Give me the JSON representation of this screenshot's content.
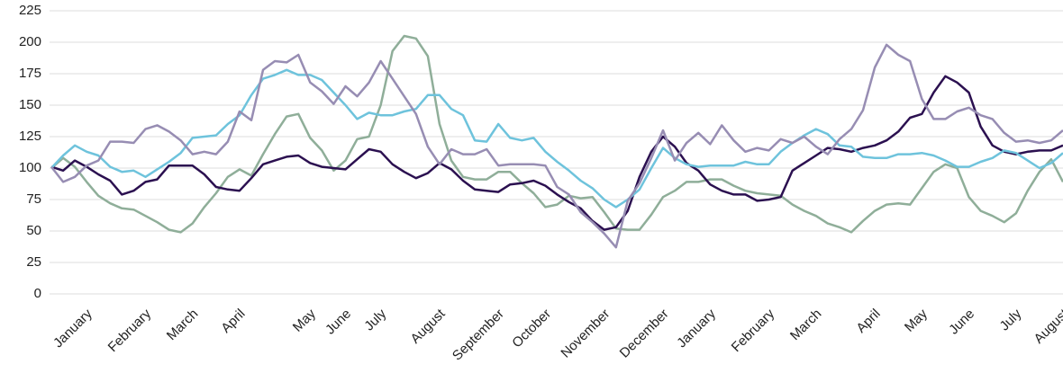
{
  "chart_data": {
    "type": "line",
    "categories": [
      null,
      null,
      null,
      "January",
      null,
      null,
      null,
      null,
      "February",
      null,
      null,
      null,
      "March",
      null,
      null,
      null,
      "April",
      null,
      null,
      null,
      null,
      null,
      "May",
      null,
      null,
      "June",
      null,
      null,
      "July",
      null,
      null,
      null,
      null,
      "August",
      null,
      null,
      null,
      null,
      "September",
      null,
      null,
      null,
      "October",
      null,
      null,
      null,
      null,
      "November",
      null,
      null,
      null,
      null,
      "December",
      null,
      null,
      null,
      "January",
      null,
      null,
      null,
      null,
      "February",
      null,
      null,
      null,
      "March",
      null,
      null,
      null,
      null,
      "April",
      null,
      null,
      null,
      "May",
      null,
      null,
      null,
      "June",
      null,
      null,
      null,
      "July",
      null,
      null,
      null,
      "August"
    ],
    "series": [
      {
        "color": "#2b1050",
        "values": [
          101,
          98,
          106,
          101,
          95,
          90,
          79,
          82,
          89,
          91,
          102,
          102,
          102,
          95,
          85,
          83,
          82,
          92,
          103,
          106,
          109,
          110,
          104,
          101,
          100,
          99,
          107,
          115,
          113,
          103,
          97,
          92,
          96,
          104,
          99,
          90,
          83,
          82,
          81,
          87,
          88,
          90,
          86,
          79,
          73,
          68,
          58,
          51,
          53,
          66,
          93,
          113,
          125,
          117,
          104,
          98,
          87,
          82,
          79,
          79,
          74,
          75,
          77,
          98,
          104,
          110,
          116,
          115,
          113,
          116,
          118,
          122,
          129,
          140,
          143,
          160,
          173,
          168,
          160,
          133,
          118,
          113,
          111,
          113,
          114,
          114,
          118
        ]
      },
      {
        "color": "#6ec3dc",
        "values": [
          100,
          110,
          118,
          113,
          110,
          101,
          97,
          98,
          93,
          99,
          105,
          112,
          124,
          125,
          126,
          135,
          142,
          158,
          171,
          174,
          178,
          174,
          174,
          170,
          160,
          150,
          139,
          144,
          142,
          142,
          145,
          147,
          158,
          158,
          147,
          142,
          122,
          121,
          135,
          124,
          122,
          124,
          113,
          105,
          98,
          90,
          84,
          75,
          69,
          75,
          83,
          100,
          116,
          108,
          103,
          101,
          102,
          102,
          102,
          105,
          103,
          103,
          113,
          120,
          126,
          131,
          127,
          118,
          117,
          109,
          108,
          108,
          111,
          111,
          112,
          110,
          106,
          101,
          101,
          105,
          108,
          114,
          112,
          106,
          100,
          104,
          112
        ]
      },
      {
        "color": "#978db3",
        "values": [
          101,
          89,
          93,
          102,
          106,
          121,
          121,
          120,
          131,
          134,
          129,
          122,
          111,
          113,
          111,
          121,
          145,
          138,
          178,
          185,
          184,
          190,
          168,
          161,
          151,
          165,
          157,
          168,
          185,
          171,
          157,
          143,
          117,
          103,
          115,
          111,
          111,
          115,
          102,
          103,
          103,
          103,
          102,
          85,
          79,
          65,
          57,
          48,
          37,
          74,
          88,
          108,
          130,
          106,
          120,
          128,
          119,
          134,
          122,
          113,
          116,
          114,
          123,
          120,
          125,
          117,
          111,
          123,
          131,
          146,
          180,
          198,
          190,
          185,
          155,
          139,
          139,
          145,
          148,
          142,
          139,
          128,
          121,
          122,
          120,
          122,
          130
        ]
      },
      {
        "color": "#8fae99",
        "values": [
          100,
          108,
          101,
          89,
          78,
          72,
          68,
          67,
          62,
          57,
          51,
          49,
          56,
          69,
          80,
          93,
          99,
          94,
          111,
          127,
          141,
          143,
          124,
          114,
          98,
          106,
          123,
          125,
          150,
          193,
          205,
          203,
          189,
          135,
          106,
          93,
          91,
          91,
          97,
          97,
          88,
          80,
          69,
          71,
          78,
          76,
          77,
          65,
          52,
          51,
          51,
          63,
          77,
          82,
          89,
          89,
          91,
          91,
          86,
          82,
          80,
          79,
          78,
          71,
          66,
          62,
          56,
          53,
          49,
          58,
          66,
          71,
          72,
          71,
          84,
          97,
          103,
          100,
          77,
          66,
          62,
          57,
          64,
          82,
          97,
          107,
          89
        ]
      }
    ],
    "ylim": [
      0,
      225
    ],
    "yticks": [
      0,
      25,
      50,
      75,
      100,
      125,
      150,
      175,
      200,
      225
    ],
    "grid": true
  }
}
